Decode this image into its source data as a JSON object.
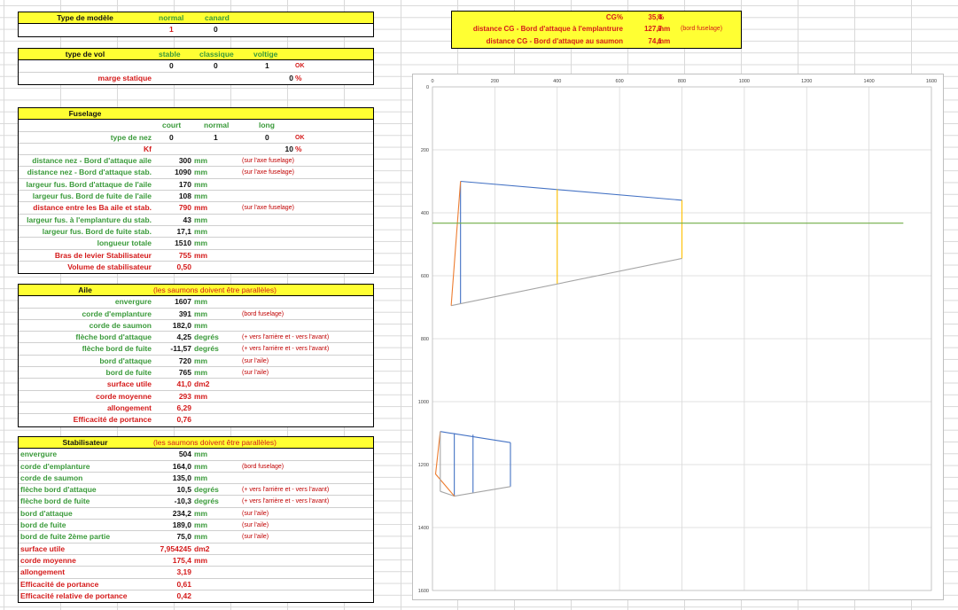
{
  "type_modele": {
    "title": "Type de modèle",
    "cols": [
      "normal",
      "canard"
    ],
    "values": [
      "1",
      "0"
    ]
  },
  "type_vol": {
    "title": "type de vol",
    "cols": [
      "stable",
      "classique",
      "voltige"
    ],
    "values": [
      "0",
      "0",
      "1"
    ],
    "ok": "OK",
    "marge_label": "marge statique",
    "marge_value": "0",
    "marge_unit": "%"
  },
  "fuselage": {
    "title": "Fuselage",
    "cols": [
      "court",
      "normal",
      "long"
    ],
    "nez_label": "type de nez",
    "nez_values": [
      "0",
      "1",
      "0"
    ],
    "ok": "OK",
    "kf_label": "Kf",
    "kf_value": "10",
    "kf_unit": "%",
    "rows": [
      {
        "label": "distance nez - Bord d'attaque aile",
        "value": "300",
        "unit": "mm",
        "note": "(sur l'axe fuselage)",
        "color": "green",
        "align": "right"
      },
      {
        "label": "distance nez - Bord d'attaque stab.",
        "value": "1090",
        "unit": "mm",
        "note": "(sur l'axe fuselage)",
        "color": "green",
        "align": "right"
      },
      {
        "label": "largeur  fus. Bord d'attaque de l'aile",
        "value": "170",
        "unit": "mm",
        "note": "",
        "color": "green",
        "align": "right"
      },
      {
        "label": "largeur  fus. Bord de fuite de l'aile",
        "value": "108",
        "unit": "mm",
        "note": "",
        "color": "green",
        "align": "right"
      },
      {
        "label": "distance entre les Ba aile et stab.",
        "value": "790",
        "unit": "mm",
        "note": "(sur l'axe fuselage)",
        "color": "red",
        "align": "right"
      },
      {
        "label": "largeur fus. à l'emplanture du stab.",
        "value": "43",
        "unit": "mm",
        "note": "",
        "color": "green",
        "align": "right"
      },
      {
        "label": "largeur  fus. Bord de fuite stab.",
        "value": "17,1",
        "unit": "mm",
        "note": "",
        "color": "green",
        "align": "right"
      },
      {
        "label": "longueur totale",
        "value": "1510",
        "unit": "mm",
        "note": "",
        "color": "green",
        "align": "right"
      },
      {
        "label": "Bras de levier Stabilisateur",
        "value": "755",
        "unit": "mm",
        "note": "",
        "color": "red",
        "align": "right"
      },
      {
        "label": "Volume de stabilisateur",
        "value": "0,50",
        "unit": "",
        "note": "",
        "color": "red",
        "align": "right"
      }
    ]
  },
  "aile": {
    "title": "Aile",
    "subtitle": "(les saumons doivent être parallèles)",
    "rows": [
      {
        "label": "envergure",
        "value": "1607",
        "unit": "mm",
        "note": "",
        "color": "green"
      },
      {
        "label": "corde d'emplanture",
        "value": "391",
        "unit": "mm",
        "note": "(bord fuselage)",
        "color": "green"
      },
      {
        "label": "corde de saumon",
        "value": "182,0",
        "unit": "mm",
        "note": "",
        "color": "green"
      },
      {
        "label": "flèche bord d'attaque",
        "value": "4,25",
        "unit": "degrés",
        "note": "(+ vers l'arrière et - vers l'avant)",
        "color": "green"
      },
      {
        "label": "flèche bord de fuite",
        "value": "-11,57",
        "unit": "degrés",
        "note": "(+ vers l'arrière et - vers l'avant)",
        "color": "green"
      },
      {
        "label": "bord d'attaque",
        "value": "720",
        "unit": "mm",
        "note": "(sur l'aile)",
        "color": "green"
      },
      {
        "label": "bord de fuite",
        "value": "765",
        "unit": "mm",
        "note": "(sur l'aile)",
        "color": "green"
      },
      {
        "label": "surface utile",
        "value": "41,0",
        "unit": "dm2",
        "note": "",
        "color": "red"
      },
      {
        "label": "corde moyenne",
        "value": "293",
        "unit": "mm",
        "note": "",
        "color": "red"
      },
      {
        "label": "allongement",
        "value": "6,29",
        "unit": "",
        "note": "",
        "color": "red"
      },
      {
        "label": "Efficacité de portance",
        "value": "0,76",
        "unit": "",
        "note": "",
        "color": "red"
      }
    ]
  },
  "stab": {
    "title": "Stabilisateur",
    "subtitle": "(les saumons doivent être parallèles)",
    "rows": [
      {
        "label": "envergure",
        "value": "504",
        "unit": "mm",
        "note": "",
        "color": "green"
      },
      {
        "label": "corde d'emplanture",
        "value": "164,0",
        "unit": "mm",
        "note": "(bord fuselage)",
        "color": "green"
      },
      {
        "label": "corde de saumon",
        "value": "135,0",
        "unit": "mm",
        "note": "",
        "color": "green"
      },
      {
        "label": "flèche bord d'attaque",
        "value": "10,5",
        "unit": "degrés",
        "note": "(+ vers l'arrière et - vers l'avant)",
        "color": "green"
      },
      {
        "label": "flèche bord de fuite",
        "value": "-10,3",
        "unit": "degrés",
        "note": "(+ vers l'arrière et - vers l'avant)",
        "color": "green"
      },
      {
        "label": "bord d'attaque",
        "value": "234,2",
        "unit": "mm",
        "note": "(sur l'aile)",
        "color": "green"
      },
      {
        "label": "bord de fuite",
        "value": "189,0",
        "unit": "mm",
        "note": "(sur l'aile)",
        "color": "green"
      },
      {
        "label": "bord de fuite 2ème partie",
        "value": "75,0",
        "unit": "mm",
        "note": "(sur l'aile)",
        "color": "green"
      },
      {
        "label": "surface utile",
        "value": "7,954245",
        "unit": "dm2",
        "note": "",
        "color": "red"
      },
      {
        "label": "corde moyenne",
        "value": "175,4",
        "unit": "mm",
        "note": "",
        "color": "red"
      },
      {
        "label": "allongement",
        "value": "3,19",
        "unit": "",
        "note": "",
        "color": "red"
      },
      {
        "label": "Efficacité de portance",
        "value": "0,61",
        "unit": "",
        "note": "",
        "color": "red"
      },
      {
        "label": "Efficacité relative de portance",
        "value": "0,42",
        "unit": "",
        "note": "",
        "color": "red"
      }
    ]
  },
  "cg": {
    "rows": [
      {
        "label": "CG%",
        "value": "35,4",
        "unit": "%",
        "note": ""
      },
      {
        "label": "distance CG - Bord d'attaque à l'emplantrure",
        "value": "127,7",
        "unit": "mm",
        "note": "(bord fuselage)"
      },
      {
        "label": "distance CG - Bord d'attaque au saumon",
        "value": "74,1",
        "unit": "mm",
        "note": ""
      }
    ]
  },
  "chart_data": {
    "type": "line",
    "title": "",
    "xlabel": "",
    "ylabel": "",
    "xlim": [
      0,
      1600
    ],
    "ylim": [
      1600,
      0
    ],
    "x_ticks": [
      0,
      200,
      400,
      600,
      800,
      1000,
      1200,
      1400,
      1600
    ],
    "y_ticks": [
      0,
      200,
      400,
      600,
      800,
      1000,
      1200,
      1400,
      1600
    ],
    "grid": true,
    "series": [
      {
        "color": "#4472c4",
        "points": [
          [
            90,
            300
          ],
          [
            800,
            360
          ]
        ]
      },
      {
        "color": "#4472c4",
        "points": [
          [
            90,
            300
          ],
          [
            90,
            690
          ]
        ]
      },
      {
        "color": "#a5a5a5",
        "points": [
          [
            60,
            695
          ],
          [
            800,
            545
          ]
        ]
      },
      {
        "color": "#ffc000",
        "points": [
          [
            800,
            360
          ],
          [
            800,
            545
          ]
        ]
      },
      {
        "color": "#ffc000",
        "points": [
          [
            400,
            325
          ],
          [
            400,
            625
          ]
        ]
      },
      {
        "color": "#ed7d31",
        "points": [
          [
            90,
            300
          ],
          [
            60,
            695
          ]
        ]
      },
      {
        "color": "#70ad47",
        "points": [
          [
            0,
            433
          ],
          [
            1510,
            433
          ]
        ]
      },
      {
        "color": "#4472c4",
        "points": [
          [
            25,
            1095
          ],
          [
            250,
            1130
          ]
        ]
      },
      {
        "color": "#4472c4",
        "points": [
          [
            70,
            1100
          ],
          [
            70,
            1300
          ]
        ]
      },
      {
        "color": "#4472c4",
        "points": [
          [
            130,
            1105
          ],
          [
            130,
            1290
          ]
        ]
      },
      {
        "color": "#4472c4",
        "points": [
          [
            250,
            1130
          ],
          [
            250,
            1270
          ]
        ]
      },
      {
        "color": "#a5a5a5",
        "points": [
          [
            25,
            1285
          ],
          [
            70,
            1300
          ],
          [
            250,
            1270
          ]
        ]
      },
      {
        "color": "#ed7d31",
        "points": [
          [
            25,
            1095
          ],
          [
            10,
            1230
          ],
          [
            70,
            1300
          ]
        ]
      },
      {
        "color": "#a5a5a5",
        "points": [
          [
            25,
            1095
          ],
          [
            25,
            1285
          ]
        ]
      }
    ]
  }
}
